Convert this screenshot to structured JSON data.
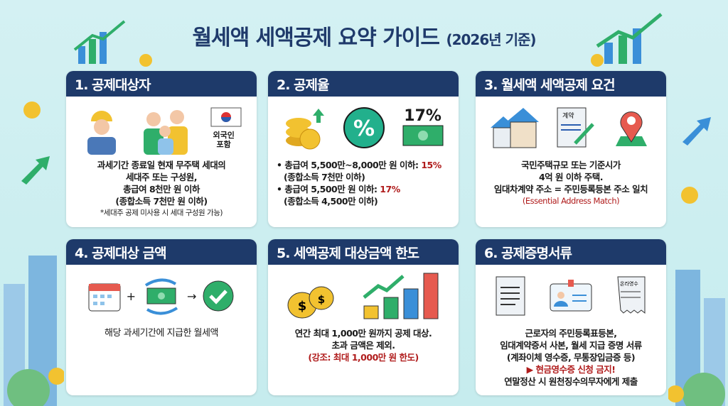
{
  "title": {
    "main": "월세액 세액공제 요약 가이드",
    "sub": "(2026년 기준)"
  },
  "cards": [
    {
      "heading": "1. 공제대상자",
      "flag_label": "외국인 포함",
      "lines": [
        "과세기간 종료일 현재 무주택 세대의",
        "세대주 또는 구성원,",
        "총급여 8천만 원 이하",
        "(종합소득 7천만 원 이하)"
      ],
      "note": "*세대주 공제 미사용 시 세대 구성원 가능)"
    },
    {
      "heading": "2. 공제율",
      "icon_label": "17%",
      "items": [
        {
          "text": "총급여 5,500만~8,000만 원 이하: ",
          "rate": "15%",
          "sub": "(종합소득 7천만 이하)"
        },
        {
          "text": "총급여 5,500만 원 이하: ",
          "rate": "17%",
          "sub": "(종합소득 4,500만 이하)"
        }
      ]
    },
    {
      "heading": "3. 월세액 세액공제 요건",
      "doc_label": "계약",
      "lines": [
        "국민주택규모 또는 기준시가",
        "4억 원 이하 주택.",
        "임대차계약 주소 = 주민등록등본 주소 일치"
      ],
      "highlight": "(Essential Address Match)"
    },
    {
      "heading": "4. 공제대상 금액",
      "lines": [
        "해당 과세기간에 지급한 월세액"
      ]
    },
    {
      "heading": "5. 세액공제 대상금액 한도",
      "lines": [
        "연간 최대 1,000만 원까지 공제 대상.",
        "초과 금액은 제외."
      ],
      "highlight": "(강조: 최대 1,000만 원 한도)"
    },
    {
      "heading": "6. 공제증명서류",
      "receipt_label": "온라영수",
      "lines": [
        "근로자의 주민등록표등본,",
        "임대계약증서 사본, 월세 지급 증명 서류",
        "(계좌이체 영수증, 무통장입금증 등)"
      ],
      "highlight": "▶ 현금영수증 신청 금지!",
      "footer": "연말정산 시 원천징수의무자에게 제출"
    }
  ],
  "colors": {
    "header": "#1e3a6a",
    "accent_red": "#b01c1c",
    "background": "#cdeff0"
  }
}
